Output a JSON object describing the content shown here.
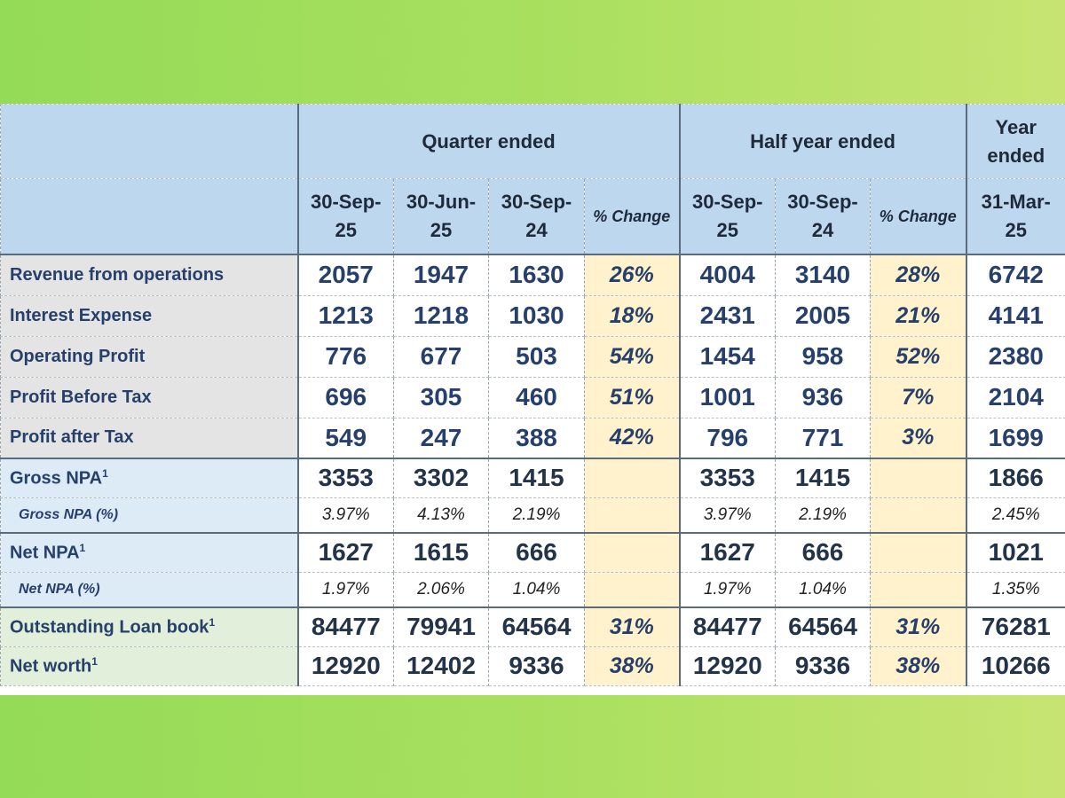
{
  "header": {
    "groups": [
      "Quarter ended",
      "Half year ended",
      "Year ended"
    ],
    "year_ended_lines": [
      "Year",
      "ended"
    ],
    "columns": [
      {
        "l1": "30-Sep-",
        "l2": "25"
      },
      {
        "l1": "30-Jun-",
        "l2": "25"
      },
      {
        "l1": "30-Sep-",
        "l2": "24"
      },
      {
        "l1": "% Change",
        "l2": ""
      },
      {
        "l1": "30-Sep-",
        "l2": "25"
      },
      {
        "l1": "30-Sep-",
        "l2": "24"
      },
      {
        "l1": "% Change",
        "l2": ""
      },
      {
        "l1": "31-Mar-",
        "l2": "25"
      }
    ]
  },
  "rows": [
    {
      "label": "Revenue from operations",
      "sup": "",
      "values": [
        "2057",
        "1947",
        "1630",
        "26%",
        "4004",
        "3140",
        "28%",
        "6742"
      ]
    },
    {
      "label": "Interest Expense",
      "sup": "",
      "values": [
        "1213",
        "1218",
        "1030",
        "18%",
        "2431",
        "2005",
        "21%",
        "4141"
      ]
    },
    {
      "label": "Operating Profit",
      "sup": "",
      "values": [
        "776",
        "677",
        "503",
        "54%",
        "1454",
        "958",
        "52%",
        "2380"
      ]
    },
    {
      "label": "Profit Before Tax",
      "sup": "",
      "values": [
        "696",
        "305",
        "460",
        "51%",
        "1001",
        "936",
        "7%",
        "2104"
      ]
    },
    {
      "label": "Profit after Tax",
      "sup": "",
      "values": [
        "549",
        "247",
        "388",
        "42%",
        "796",
        "771",
        "3%",
        "1699"
      ]
    },
    {
      "label": "Gross NPA",
      "sup": "1",
      "values": [
        "3353",
        "3302",
        "1415",
        "",
        "3353",
        "1415",
        "",
        "1866"
      ]
    },
    {
      "label": "Gross NPA (%)",
      "sup": "",
      "values": [
        "3.97%",
        "4.13%",
        "2.19%",
        "",
        "3.97%",
        "2.19%",
        "",
        "2.45%"
      ]
    },
    {
      "label": "Net NPA",
      "sup": "1",
      "values": [
        "1627",
        "1615",
        "666",
        "",
        "1627",
        "666",
        "",
        "1021"
      ]
    },
    {
      "label": "Net NPA (%)",
      "sup": "",
      "values": [
        "1.97%",
        "2.06%",
        "1.04%",
        "",
        "1.97%",
        "1.04%",
        "",
        "1.35%"
      ]
    },
    {
      "label": "Outstanding Loan book",
      "sup": "1",
      "values": [
        "84477",
        "79941",
        "64564",
        "31%",
        "84477",
        "64564",
        "31%",
        "76281"
      ]
    },
    {
      "label": "Net worth",
      "sup": "1",
      "values": [
        "12920",
        "12402",
        "9336",
        "38%",
        "12920",
        "9336",
        "38%",
        "10266"
      ]
    }
  ],
  "colors": {
    "background_left": "#94db58",
    "background_right": "#c7e472",
    "header_blue": "#bdd7ee",
    "pct_yellow": "#fff2cc",
    "label_grey": "#e4e4e4",
    "label_blue": "#ddebf7",
    "label_green": "#e2efda",
    "text_navy": "#27406b"
  }
}
